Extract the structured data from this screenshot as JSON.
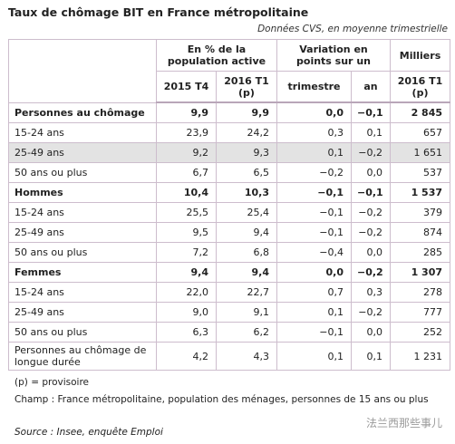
{
  "header": {
    "title": "Taux de chômage BIT en France métropolitaine",
    "subtitle": "Données CVS, en moyenne trimestrielle"
  },
  "table": {
    "group_headers": [
      "En % de la population active",
      "Variation en points sur un",
      "Milliers"
    ],
    "column_headers": [
      "2015 T4",
      "2016 T1 (p)",
      "trimestre",
      "an",
      "2016 T1 (p)"
    ],
    "rows": [
      [
        "Personnes au chômage",
        "9,9",
        "9,9",
        "0,0",
        "−0,1",
        "2 845"
      ],
      [
        "15-24 ans",
        "23,9",
        "24,2",
        "0,3",
        "0,1",
        "657"
      ],
      [
        "25-49 ans",
        "9,2",
        "9,3",
        "0,1",
        "−0,2",
        "1 651"
      ],
      [
        "50 ans ou plus",
        "6,7",
        "6,5",
        "−0,2",
        "0,0",
        "537"
      ],
      [
        "Hommes",
        "10,4",
        "10,3",
        "−0,1",
        "−0,1",
        "1 537"
      ],
      [
        "15-24 ans",
        "25,5",
        "25,4",
        "−0,1",
        "−0,2",
        "379"
      ],
      [
        "25-49 ans",
        "9,5",
        "9,4",
        "−0,1",
        "−0,2",
        "874"
      ],
      [
        "50 ans ou plus",
        "7,2",
        "6,8",
        "−0,4",
        "0,0",
        "285"
      ],
      [
        "Femmes",
        "9,4",
        "9,4",
        "0,0",
        "−0,2",
        "1 307"
      ],
      [
        "15-24 ans",
        "22,0",
        "22,7",
        "0,7",
        "0,3",
        "278"
      ],
      [
        "25-49 ans",
        "9,0",
        "9,1",
        "0,1",
        "−0,2",
        "777"
      ],
      [
        "50 ans ou plus",
        "6,3",
        "6,2",
        "−0,1",
        "0,0",
        "252"
      ],
      [
        "Personnes au chômage de longue durée",
        "4,2",
        "4,3",
        "0,1",
        "0,1",
        "1 231"
      ]
    ]
  },
  "notes": [
    "(p) = provisoire",
    "Champ : France métropolitaine, population des ménages, personnes de 15 ans ou plus",
    "Source : Insee, enquête Emploi"
  ],
  "watermark": "法兰西那些事儿"
}
